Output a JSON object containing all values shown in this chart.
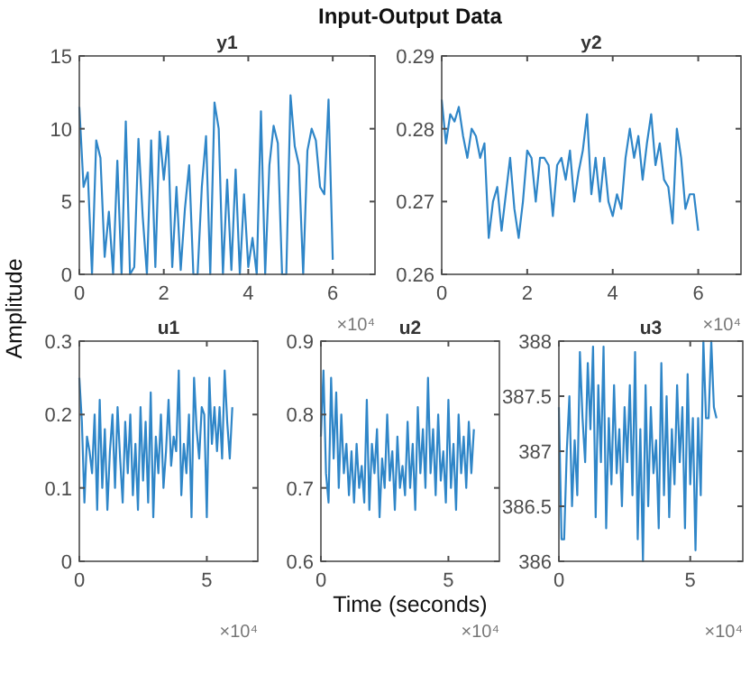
{
  "chart_data": [
    {
      "type": "line",
      "title": "y1",
      "ylabel": "Amplitude",
      "annotations": [
        "×10⁴",
        "Input-Output Data"
      ],
      "color": "#2f86c8",
      "xlim": [
        0,
        7
      ],
      "xticks": [
        0,
        2,
        4,
        6
      ],
      "ylim": [
        0,
        15
      ],
      "yticks": [
        0,
        5,
        10,
        15
      ],
      "x": [
        0,
        0.1,
        0.2,
        0.3,
        0.4,
        0.5,
        0.6,
        0.7,
        0.8,
        0.9,
        1,
        1.1,
        1.2,
        1.3,
        1.4,
        1.5,
        1.6,
        1.7,
        1.8,
        1.9,
        2,
        2.1,
        2.2,
        2.3,
        2.4,
        2.5,
        2.6,
        2.7,
        2.8,
        2.9,
        3,
        3.1,
        3.2,
        3.3,
        3.4,
        3.5,
        3.6,
        3.7,
        3.8,
        3.9,
        4,
        4.1,
        4.2,
        4.3,
        4.4,
        4.5,
        4.6,
        4.7,
        4.8,
        4.9,
        5,
        5.1,
        5.2,
        5.3,
        5.4,
        5.5,
        5.6,
        5.7,
        5.8,
        5.9,
        6
      ],
      "values": [
        11.5,
        6,
        7,
        0,
        9.2,
        8,
        1.2,
        4.3,
        0,
        7.8,
        0,
        10.5,
        0,
        0.5,
        9.3,
        4,
        0,
        9.2,
        0.5,
        9.8,
        6.5,
        9.5,
        0.5,
        6,
        0.3,
        4.5,
        7.5,
        0,
        0,
        6,
        9.5,
        0,
        11.8,
        10,
        0,
        6.5,
        0.3,
        7.2,
        0,
        5.5,
        0.5,
        2.5,
        0,
        11.2,
        0,
        7.5,
        10.2,
        9,
        0,
        0,
        12.3,
        8.8,
        7.5,
        0,
        8.5,
        10,
        9.2,
        6,
        5.5,
        12,
        1
      ]
    },
    {
      "type": "line",
      "title": "y2",
      "annotations": [
        "×10⁴"
      ],
      "color": "#2f86c8",
      "xlim": [
        0,
        7
      ],
      "xticks": [
        0,
        2,
        4,
        6
      ],
      "ylim": [
        0.26,
        0.29
      ],
      "yticks": [
        0.26,
        0.27,
        0.28,
        0.29
      ],
      "x": [
        0,
        0.1,
        0.2,
        0.3,
        0.4,
        0.5,
        0.6,
        0.7,
        0.8,
        0.9,
        1,
        1.1,
        1.2,
        1.3,
        1.4,
        1.5,
        1.6,
        1.7,
        1.8,
        1.9,
        2,
        2.1,
        2.2,
        2.3,
        2.4,
        2.5,
        2.6,
        2.7,
        2.8,
        2.9,
        3,
        3.1,
        3.2,
        3.3,
        3.4,
        3.5,
        3.6,
        3.7,
        3.8,
        3.9,
        4,
        4.1,
        4.2,
        4.3,
        4.4,
        4.5,
        4.6,
        4.7,
        4.8,
        4.9,
        5,
        5.1,
        5.2,
        5.3,
        5.4,
        5.5,
        5.6,
        5.7,
        5.8,
        5.9,
        6
      ],
      "values": [
        0.284,
        0.278,
        0.282,
        0.281,
        0.283,
        0.279,
        0.276,
        0.28,
        0.279,
        0.276,
        0.278,
        0.265,
        0.27,
        0.272,
        0.266,
        0.271,
        0.276,
        0.269,
        0.265,
        0.27,
        0.277,
        0.276,
        0.27,
        0.276,
        0.276,
        0.275,
        0.268,
        0.275,
        0.276,
        0.273,
        0.277,
        0.27,
        0.274,
        0.277,
        0.282,
        0.271,
        0.276,
        0.27,
        0.276,
        0.27,
        0.268,
        0.271,
        0.269,
        0.276,
        0.28,
        0.276,
        0.279,
        0.273,
        0.278,
        0.282,
        0.275,
        0.278,
        0.273,
        0.272,
        0.267,
        0.28,
        0.276,
        0.269,
        0.271,
        0.271,
        0.266
      ]
    },
    {
      "type": "line",
      "title": "u1",
      "annotations": [
        "×10⁴"
      ],
      "color": "#2f86c8",
      "xlim": [
        0,
        7
      ],
      "xticks": [
        0,
        5
      ],
      "ylim": [
        0,
        0.3
      ],
      "yticks": [
        0,
        0.1,
        0.2,
        0.3
      ],
      "x": [
        0,
        0.1,
        0.2,
        0.3,
        0.4,
        0.5,
        0.6,
        0.7,
        0.8,
        0.9,
        1,
        1.1,
        1.2,
        1.3,
        1.4,
        1.5,
        1.6,
        1.7,
        1.8,
        1.9,
        2,
        2.1,
        2.2,
        2.3,
        2.4,
        2.5,
        2.6,
        2.7,
        2.8,
        2.9,
        3,
        3.1,
        3.2,
        3.3,
        3.4,
        3.5,
        3.6,
        3.7,
        3.8,
        3.9,
        4,
        4.1,
        4.2,
        4.3,
        4.4,
        4.5,
        4.6,
        4.7,
        4.8,
        4.9,
        5,
        5.1,
        5.2,
        5.3,
        5.4,
        5.5,
        5.6,
        5.7,
        5.8,
        5.9,
        6
      ],
      "values": [
        0.25,
        0.19,
        0.08,
        0.17,
        0.15,
        0.12,
        0.2,
        0.07,
        0.22,
        0.1,
        0.18,
        0.07,
        0.15,
        0.2,
        0.1,
        0.21,
        0.14,
        0.08,
        0.19,
        0.12,
        0.2,
        0.09,
        0.16,
        0.07,
        0.21,
        0.11,
        0.19,
        0.08,
        0.23,
        0.06,
        0.17,
        0.12,
        0.2,
        0.1,
        0.15,
        0.22,
        0.13,
        0.17,
        0.15,
        0.26,
        0.09,
        0.16,
        0.12,
        0.2,
        0.06,
        0.25,
        0.18,
        0.14,
        0.21,
        0.2,
        0.06,
        0.25,
        0.16,
        0.21,
        0.15,
        0.21,
        0.14,
        0.26,
        0.19,
        0.14,
        0.21
      ]
    },
    {
      "type": "line",
      "title": "u2",
      "xlabel": "Time (seconds)",
      "annotations": [
        "×10⁴"
      ],
      "color": "#2f86c8",
      "xlim": [
        0,
        7
      ],
      "xticks": [
        0,
        5
      ],
      "ylim": [
        0.6,
        0.9
      ],
      "yticks": [
        0.6,
        0.7,
        0.8,
        0.9
      ],
      "x": [
        0,
        0.1,
        0.2,
        0.3,
        0.4,
        0.5,
        0.6,
        0.7,
        0.8,
        0.9,
        1,
        1.1,
        1.2,
        1.3,
        1.4,
        1.5,
        1.6,
        1.7,
        1.8,
        1.9,
        2,
        2.1,
        2.2,
        2.3,
        2.4,
        2.5,
        2.6,
        2.7,
        2.8,
        2.9,
        3,
        3.1,
        3.2,
        3.3,
        3.4,
        3.5,
        3.6,
        3.7,
        3.8,
        3.9,
        4,
        4.1,
        4.2,
        4.3,
        4.4,
        4.5,
        4.6,
        4.7,
        4.8,
        4.9,
        5,
        5.1,
        5.2,
        5.3,
        5.4,
        5.5,
        5.6,
        5.7,
        5.8,
        5.9,
        6
      ],
      "values": [
        0.77,
        0.86,
        0.72,
        0.68,
        0.85,
        0.74,
        0.83,
        0.7,
        0.8,
        0.72,
        0.76,
        0.69,
        0.75,
        0.68,
        0.76,
        0.7,
        0.73,
        0.68,
        0.82,
        0.67,
        0.76,
        0.72,
        0.78,
        0.66,
        0.74,
        0.7,
        0.8,
        0.71,
        0.75,
        0.67,
        0.77,
        0.7,
        0.73,
        0.69,
        0.79,
        0.7,
        0.76,
        0.67,
        0.81,
        0.72,
        0.78,
        0.7,
        0.85,
        0.72,
        0.78,
        0.69,
        0.8,
        0.71,
        0.75,
        0.68,
        0.82,
        0.7,
        0.76,
        0.67,
        0.8,
        0.72,
        0.77,
        0.7,
        0.79,
        0.72,
        0.78
      ]
    },
    {
      "type": "line",
      "title": "u3",
      "annotations": [
        "×10⁴"
      ],
      "color": "#2f86c8",
      "xlim": [
        0,
        7
      ],
      "xticks": [
        0,
        5
      ],
      "ylim": [
        386,
        388
      ],
      "yticks": [
        386,
        386.5,
        387,
        387.5,
        388
      ],
      "x": [
        0,
        0.1,
        0.2,
        0.3,
        0.4,
        0.5,
        0.6,
        0.7,
        0.8,
        0.9,
        1,
        1.1,
        1.2,
        1.3,
        1.4,
        1.5,
        1.6,
        1.7,
        1.8,
        1.9,
        2,
        2.1,
        2.2,
        2.3,
        2.4,
        2.5,
        2.6,
        2.7,
        2.8,
        2.9,
        3,
        3.1,
        3.2,
        3.3,
        3.4,
        3.5,
        3.6,
        3.7,
        3.8,
        3.9,
        4,
        4.1,
        4.2,
        4.3,
        4.4,
        4.5,
        4.6,
        4.7,
        4.8,
        4.9,
        5,
        5.1,
        5.2,
        5.3,
        5.4,
        5.5,
        5.6,
        5.7,
        5.8,
        5.9,
        6
      ],
      "values": [
        387.4,
        386.2,
        386.2,
        387,
        387.5,
        386.5,
        387.1,
        386.6,
        387.9,
        387.3,
        386.9,
        387.8,
        387.2,
        387.95,
        386.4,
        387.6,
        386.9,
        387.95,
        386.3,
        387.3,
        386.7,
        387.6,
        386.8,
        387.2,
        386.5,
        387.4,
        386.9,
        387.6,
        386.6,
        387.9,
        386.2,
        387.2,
        386,
        387.6,
        386.5,
        387.4,
        386.8,
        387.1,
        386.3,
        387.8,
        386.6,
        387.5,
        386.4,
        387.2,
        386.7,
        387.6,
        386.9,
        387.4,
        386.3,
        387.7,
        386.7,
        387.3,
        386.1,
        387.3,
        386.6,
        388,
        387.3,
        387.3,
        388,
        387.4,
        387.3
      ]
    }
  ]
}
